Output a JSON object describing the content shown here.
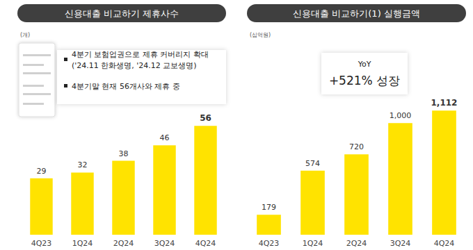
{
  "chart_data": [
    {
      "type": "bar",
      "title": "신용대출 비교하기 제휴사수",
      "subtitle": "(개)",
      "categories": [
        "4Q23",
        "1Q24",
        "2Q24",
        "3Q24",
        "4Q24"
      ],
      "values": [
        29,
        32,
        38,
        46,
        56
      ],
      "color": "#ffe300",
      "data_labels": true,
      "tick_labels": "x",
      "grid": false,
      "annotations": [
        "4분기 보험업권으로 제휴 커버리지 확대\n('24.11 한화생명, '24.12 교보생명)",
        "4분기말 현재 56개사와 제휴 중"
      ]
    },
    {
      "type": "bar",
      "title": "신용대출 비교하기(1) 실행금액",
      "subtitle": "(십억원)",
      "categories": [
        "4Q23",
        "1Q24",
        "2Q24",
        "3Q24",
        "4Q24"
      ],
      "values": [
        179,
        574,
        720,
        1000,
        1112
      ],
      "value_labels": [
        "179",
        "574",
        "720",
        "1,000",
        "1,112"
      ],
      "color": "#ffe300",
      "data_labels": true,
      "tick_labels": "x",
      "grid": false,
      "annotations": [
        "YoY",
        "+521% 성장"
      ]
    }
  ]
}
